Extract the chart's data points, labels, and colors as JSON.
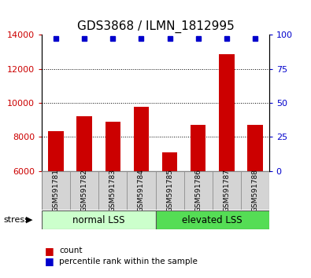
{
  "title": "GDS3868 / ILMN_1812995",
  "samples": [
    "GSM591781",
    "GSM591782",
    "GSM591783",
    "GSM591784",
    "GSM591785",
    "GSM591786",
    "GSM591787",
    "GSM591788"
  ],
  "counts": [
    8350,
    9200,
    8900,
    9750,
    7100,
    8700,
    12850,
    8700
  ],
  "ylim_left": [
    6000,
    14000
  ],
  "ylim_right": [
    0,
    100
  ],
  "yticks_left": [
    6000,
    8000,
    10000,
    12000,
    14000
  ],
  "yticks_right": [
    0,
    25,
    50,
    75,
    100
  ],
  "bar_color": "#cc0000",
  "marker_color": "#0000cc",
  "group1_label": "normal LSS",
  "group2_label": "elevated LSS",
  "group1_color": "#ccffcc",
  "group2_color": "#55dd55",
  "sample_bg_color": "#d4d4d4",
  "stress_label": "stress",
  "legend_count_label": "count",
  "legend_pct_label": "percentile rank within the sample",
  "title_fontsize": 11,
  "axis_tick_color_left": "#cc0000",
  "axis_tick_color_right": "#0000cc",
  "tick_fontsize": 8,
  "bar_width": 0.55
}
